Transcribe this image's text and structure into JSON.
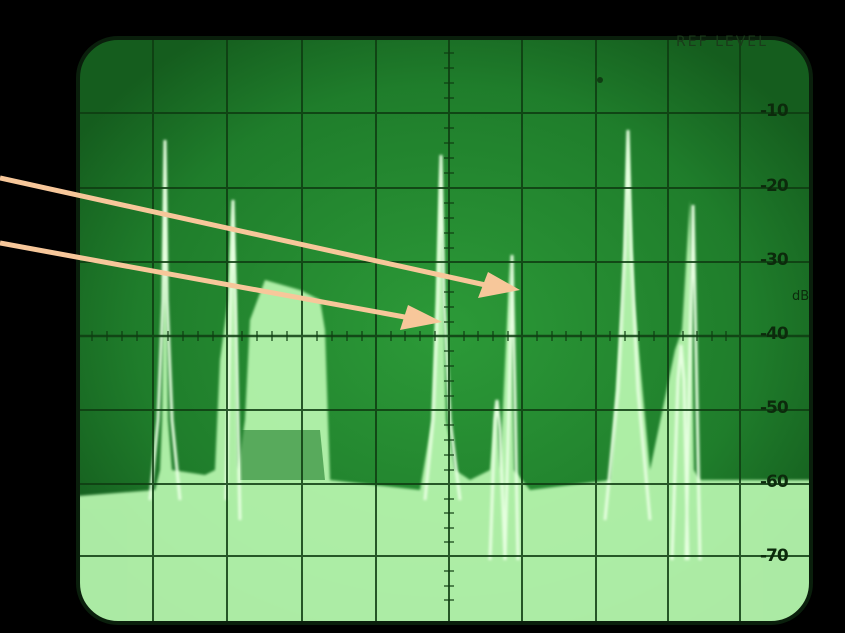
{
  "screen": {
    "ref_level_text": "REF LEVEL",
    "unit_text": "dB",
    "scale_labels": [
      "-10",
      "-20",
      "-30",
      "-40",
      "-50",
      "-60",
      "-70"
    ],
    "colors": {
      "screen_bg": "#1e7a2a",
      "trace": "#c8ffc0",
      "graticule": "#0f3d12",
      "arrow": "#f7c79a"
    }
  }
}
